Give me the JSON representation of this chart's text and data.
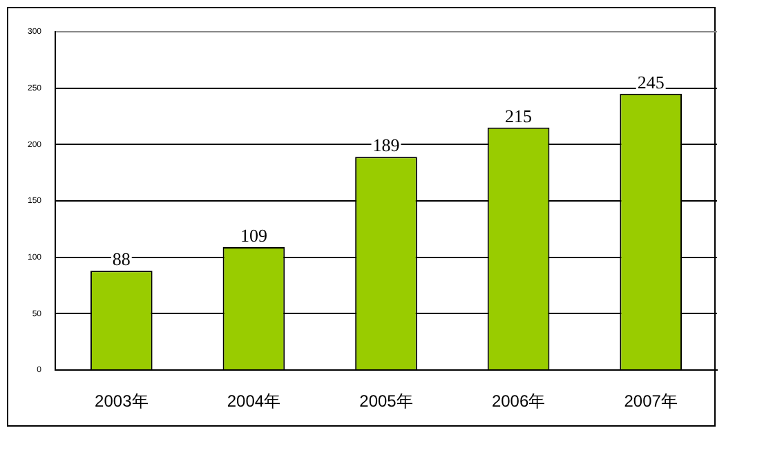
{
  "chart_data": {
    "type": "bar",
    "categories": [
      "2003年",
      "2004年",
      "2005年",
      "2006年",
      "2007年"
    ],
    "values": [
      88,
      109,
      189,
      215,
      245
    ],
    "color": "#99cc00",
    "ylim": [
      0,
      300
    ],
    "yticks": [
      0,
      50,
      100,
      150,
      200,
      250,
      300
    ],
    "grid": "y",
    "data_labels": true,
    "legend": false
  }
}
